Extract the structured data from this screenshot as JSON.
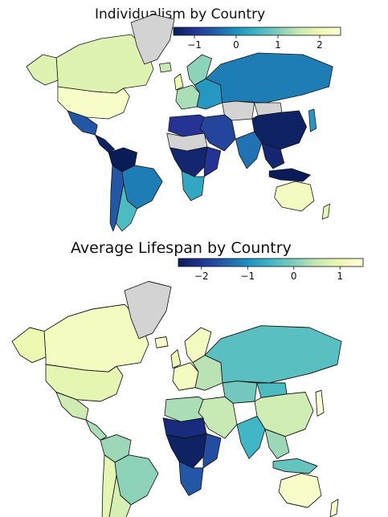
{
  "maps": [
    {
      "title": "Individualism by Country",
      "colorbar": {
        "ticks": [
          -1,
          0,
          1,
          2
        ],
        "tick_labels": [
          "−1",
          "0",
          "1",
          "2"
        ],
        "min": -1.5,
        "max": 2.5,
        "cmap": "YlGnBu_r"
      },
      "missing_color": "#d3d3d3",
      "regions": [
        {
          "name": "canada",
          "value": 1.8
        },
        {
          "name": "alaska",
          "value": 1.8
        },
        {
          "name": "usa",
          "value": 2.3
        },
        {
          "name": "mexico",
          "value": -0.6
        },
        {
          "name": "central-america",
          "value": -1.4
        },
        {
          "name": "colombia-venezuela",
          "value": -1.5
        },
        {
          "name": "brazil",
          "value": -0.2
        },
        {
          "name": "argentina",
          "value": 0.6
        },
        {
          "name": "chile",
          "value": -0.6
        },
        {
          "name": "greenland",
          "value": null
        },
        {
          "name": "iceland",
          "value": 1.5
        },
        {
          "name": "uk",
          "value": 2.0
        },
        {
          "name": "scandinavia",
          "value": 1.1
        },
        {
          "name": "western-europe",
          "value": 1.3
        },
        {
          "name": "eastern-europe",
          "value": 0.1
        },
        {
          "name": "russia",
          "value": -0.2
        },
        {
          "name": "kazakhstan",
          "value": null
        },
        {
          "name": "mongolia",
          "value": null
        },
        {
          "name": "china",
          "value": -1.4
        },
        {
          "name": "india",
          "value": -0.3
        },
        {
          "name": "middle-east",
          "value": -0.8
        },
        {
          "name": "north-africa",
          "value": -1.0
        },
        {
          "name": "sahel",
          "value": null
        },
        {
          "name": "central-africa",
          "value": -1.3
        },
        {
          "name": "east-africa",
          "value": -1.0
        },
        {
          "name": "southern-africa",
          "value": 0.3
        },
        {
          "name": "southeast-asia",
          "value": -1.3
        },
        {
          "name": "indonesia",
          "value": -1.5
        },
        {
          "name": "japan",
          "value": 0.1
        },
        {
          "name": "australia",
          "value": 2.2
        },
        {
          "name": "new-zealand",
          "value": 1.9
        }
      ]
    },
    {
      "title": "Average Lifespan by Country",
      "colorbar": {
        "ticks": [
          -2,
          -1,
          0,
          1
        ],
        "tick_labels": [
          "−2",
          "−1",
          "0",
          "1"
        ],
        "min": -2.5,
        "max": 1.5,
        "cmap": "YlGnBu_r"
      },
      "missing_color": "#d3d3d3",
      "regions": [
        {
          "name": "canada",
          "value": 1.2
        },
        {
          "name": "alaska",
          "value": 1.0
        },
        {
          "name": "usa",
          "value": 0.9
        },
        {
          "name": "mexico",
          "value": 0.6
        },
        {
          "name": "central-america",
          "value": 0.3
        },
        {
          "name": "colombia-venezuela",
          "value": 0.2
        },
        {
          "name": "brazil",
          "value": 0.1
        },
        {
          "name": "argentina",
          "value": 0.7
        },
        {
          "name": "chile",
          "value": 0.9
        },
        {
          "name": "greenland",
          "value": null
        },
        {
          "name": "iceland",
          "value": 1.3
        },
        {
          "name": "uk",
          "value": 1.1
        },
        {
          "name": "scandinavia",
          "value": 1.2
        },
        {
          "name": "western-europe",
          "value": 1.2
        },
        {
          "name": "eastern-europe",
          "value": 0.4
        },
        {
          "name": "russia",
          "value": -0.3
        },
        {
          "name": "kazakhstan",
          "value": -0.1
        },
        {
          "name": "mongolia",
          "value": -0.4
        },
        {
          "name": "china",
          "value": 0.6
        },
        {
          "name": "india",
          "value": -0.5
        },
        {
          "name": "middle-east",
          "value": 0.5
        },
        {
          "name": "north-africa",
          "value": 0.3
        },
        {
          "name": "sahel",
          "value": -2.2
        },
        {
          "name": "central-africa",
          "value": -2.4
        },
        {
          "name": "east-africa",
          "value": -1.7
        },
        {
          "name": "southern-africa",
          "value": -1.6
        },
        {
          "name": "southeast-asia",
          "value": 0.2
        },
        {
          "name": "indonesia",
          "value": -0.2
        },
        {
          "name": "japan",
          "value": 1.4
        },
        {
          "name": "australia",
          "value": 1.3
        },
        {
          "name": "new-zealand",
          "value": 1.3
        }
      ]
    }
  ]
}
